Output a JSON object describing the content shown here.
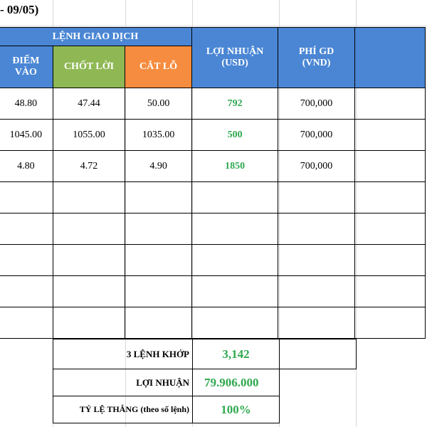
{
  "title": "- 09/05)",
  "header": {
    "group_label": "LỆNH GIAO DỊCH",
    "entry_line1": "ĐIỂM",
    "entry_line2": "VÀO",
    "take_profit": "CHỐT LỜI",
    "stop_loss": "CẮT LỖ",
    "profit_line1": "LỢI NHUẬN",
    "profit_line2": "(USD)",
    "fee_line1": "PHÍ GD",
    "fee_line2": "(VND)"
  },
  "rows": [
    {
      "entry": "48.80",
      "take_profit": "47.44",
      "stop_loss": "50.00",
      "profit": "792",
      "fee": "700,000"
    },
    {
      "entry": "1045.00",
      "take_profit": "1055.00",
      "stop_loss": "1035.00",
      "profit": "500",
      "fee": "700,000"
    },
    {
      "entry": "4.80",
      "take_profit": "4.72",
      "stop_loss": "4.90",
      "profit": "1850",
      "fee": "700,000"
    }
  ],
  "summary": {
    "matched_label": "3 LỆNH KHỚP",
    "matched_value": "3,142",
    "profit_label": "LỢI NHUẬN",
    "profit_value": "79.906.000",
    "winrate_label": "TỶ LỆ THẮNG (theo số lệnh)",
    "winrate_value": "100%"
  },
  "colors": {
    "header_blue": "#4a86d4",
    "header_green": "#8fb855",
    "header_orange": "#f68c3f",
    "profit_green": "#2fa84f"
  }
}
